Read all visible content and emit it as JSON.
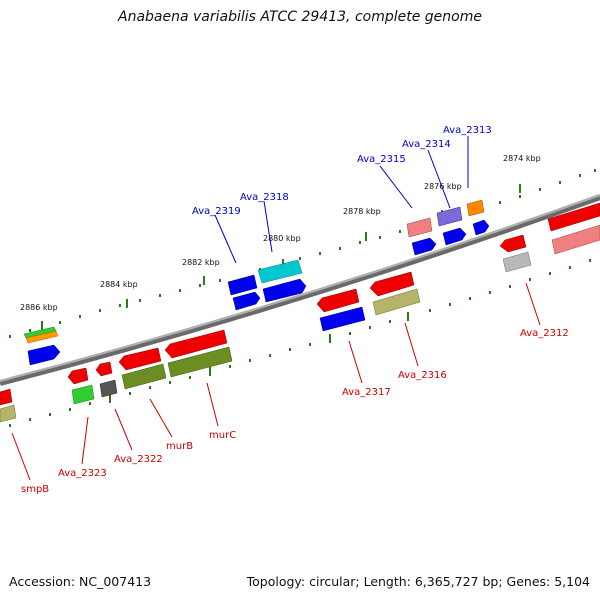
{
  "title": "Anabaena variabilis ATCC 29413, complete genome",
  "footer": {
    "accession": "Accession: NC_007413",
    "topology": "Topology: circular; Length: 6,365,727 bp; Genes: 5,104"
  },
  "scale_labels": [
    "2874 kbp",
    "2876 kbp",
    "2878 kbp",
    "2880 kbp",
    "2882 kbp",
    "2884 kbp",
    "2886 kbp"
  ],
  "labels_top": [
    "Ava_2313",
    "Ava_2314",
    "Ava_2315",
    "Ava_2318",
    "Ava_2319"
  ],
  "labels_bottom": [
    "Ava_2312",
    "Ava_2316",
    "Ava_2317",
    "murC",
    "murB",
    "Ava_2322",
    "Ava_2323",
    "smpB"
  ],
  "colors": {
    "top_label": "#0000cc",
    "bottom_label": "#cc0000",
    "backbone": "#808080",
    "ticks": "#2a7a1a"
  }
}
